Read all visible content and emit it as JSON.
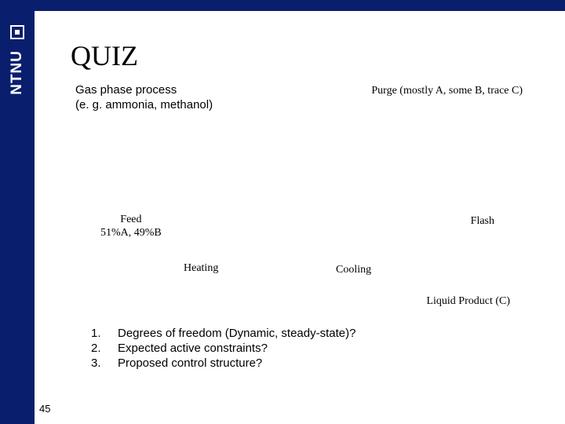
{
  "colors": {
    "brand": "#0a1e6e",
    "background": "#ffffff",
    "text": "#000000",
    "logo_fg": "#ffffff"
  },
  "sidebar": {
    "org": "NTNU"
  },
  "title": "QUIZ",
  "subtitle_line1": "Gas phase process",
  "subtitle_line2": "(e. g. ammonia, methanol)",
  "labels": {
    "purge": "Purge (mostly A, some B, trace C)",
    "feed_line1": "Feed",
    "feed_line2": "51%A, 49%B",
    "flash": "Flash",
    "heating": "Heating",
    "cooling": "Cooling",
    "liquid": "Liquid Product (C)"
  },
  "questions": {
    "n1": "1.",
    "q1": "Degrees of freedom (Dynamic, steady-state)?",
    "n2": "2.",
    "q2": "Expected active constraints?",
    "n3": "3.",
    "q3": "Proposed control structure?"
  },
  "slide_number": "45"
}
